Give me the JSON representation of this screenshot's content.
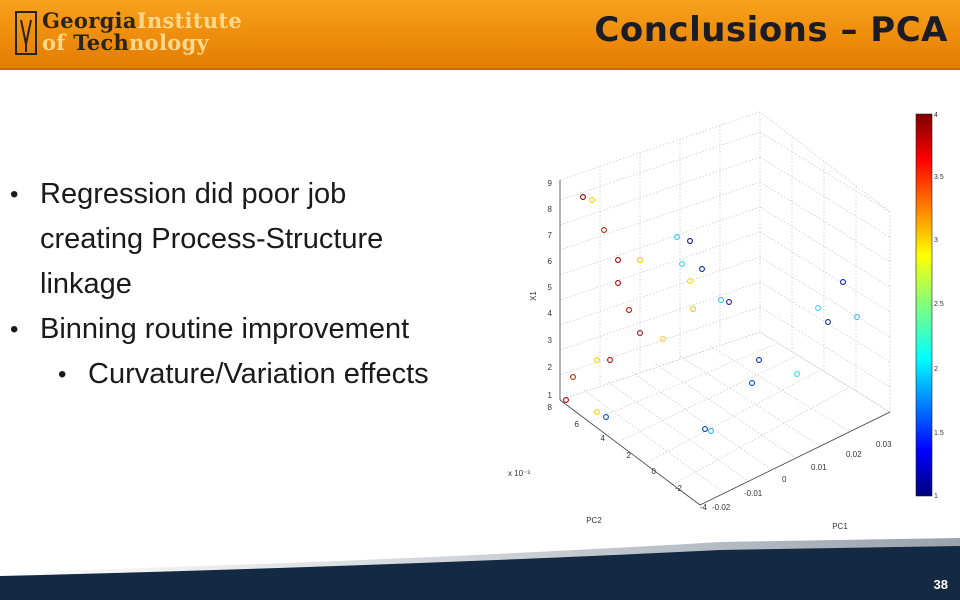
{
  "header": {
    "logo": {
      "line1_dark": "Georgia",
      "line1_light": "Institute",
      "line2_light_a": "of ",
      "line2_dark": "Tech",
      "line2_light_b": "nology"
    },
    "title": "Conclusions – PCA",
    "brand_color": "#f39a16"
  },
  "bullets": [
    {
      "text": "Regression did poor job creating Process-Structure linkage",
      "level": 1
    },
    {
      "text": "Binning routine improvement",
      "level": 1
    },
    {
      "text": "Curvature/Variation effects",
      "level": 2
    }
  ],
  "chart_data": {
    "type": "scatter",
    "title": "",
    "axes": {
      "x": {
        "label": "PC1",
        "ticks": [
          "-0.02",
          "-0.01",
          "0",
          "0.01",
          "0.02",
          "0.03"
        ]
      },
      "y": {
        "label": "PC2",
        "ticks": [
          "-4",
          "-2",
          "0",
          "2",
          "4",
          "6",
          "8"
        ],
        "scale_label": "x 10⁻³"
      },
      "z": {
        "label": "X1",
        "ticks": [
          "1",
          "2",
          "3",
          "4",
          "5",
          "6",
          "7",
          "8",
          "9"
        ]
      }
    },
    "colorbar": {
      "ticks": [
        "1",
        "1.5",
        "2",
        "2.5",
        "3",
        "3.5",
        "4"
      ],
      "colormap": "jet",
      "range": [
        1,
        4
      ]
    },
    "grid": true
  },
  "footer": {
    "page_number": "38",
    "color": "#142a42"
  }
}
